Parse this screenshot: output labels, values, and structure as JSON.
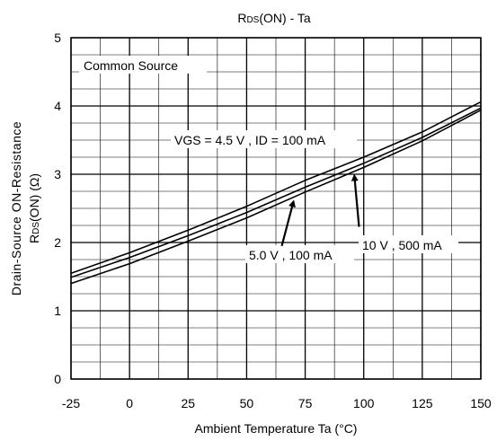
{
  "chart_data": {
    "type": "line",
    "title_main": "R",
    "title_sub": "DS",
    "title_rest": "(ON) - Ta",
    "xlabel": "Ambient Temperature  Ta (°C)",
    "ylabel_line1": "Drain-Source ON-Resistance",
    "ylabel_line2_main": "R",
    "ylabel_line2_sub": "DS",
    "ylabel_line2_rest": "(ON) (Ω)",
    "xlim": [
      -25,
      150
    ],
    "ylim": [
      0,
      5
    ],
    "x_ticks": [
      -25,
      0,
      25,
      50,
      75,
      100,
      125,
      150
    ],
    "y_ticks": [
      0,
      1,
      2,
      3,
      4,
      5
    ],
    "x_tick_labels": [
      "-25",
      "0",
      "25",
      "50",
      "75",
      "100",
      "125",
      "150"
    ],
    "y_tick_labels": [
      "0",
      "1",
      "2",
      "3",
      "4",
      "5"
    ],
    "x_minor_step": 12.5,
    "y_minor_step": 0.25,
    "grid": true,
    "annotations": {
      "common_source": "Common Source",
      "vgs_45": "VGS = 4.5 V , ID = 100 mA",
      "v50": "5.0 V , 100 mA",
      "v10": "10 V , 500 mA"
    },
    "series": [
      {
        "x": [
          -25,
          0,
          25,
          50,
          75,
          100,
          125,
          150
        ],
        "y": [
          1.55,
          1.85,
          2.18,
          2.53,
          2.91,
          3.25,
          3.62,
          4.06
        ]
      },
      {
        "x": [
          -25,
          0,
          25,
          50,
          75,
          100,
          125,
          150
        ],
        "y": [
          1.49,
          1.78,
          2.1,
          2.44,
          2.81,
          3.16,
          3.54,
          3.97
        ]
      },
      {
        "x": [
          -25,
          0,
          25,
          50,
          75,
          100,
          125,
          150
        ],
        "y": [
          1.4,
          1.69,
          2.02,
          2.36,
          2.74,
          3.1,
          3.49,
          3.94
        ]
      }
    ],
    "arrows": [
      {
        "from": [
          65,
          1.95
        ],
        "to": [
          70,
          2.6
        ]
      },
      {
        "from": [
          98,
          2.23
        ],
        "to": [
          96,
          2.98
        ]
      }
    ],
    "colors": {
      "line": "#000000",
      "grid": "#000000",
      "background": "#ffffff"
    }
  }
}
